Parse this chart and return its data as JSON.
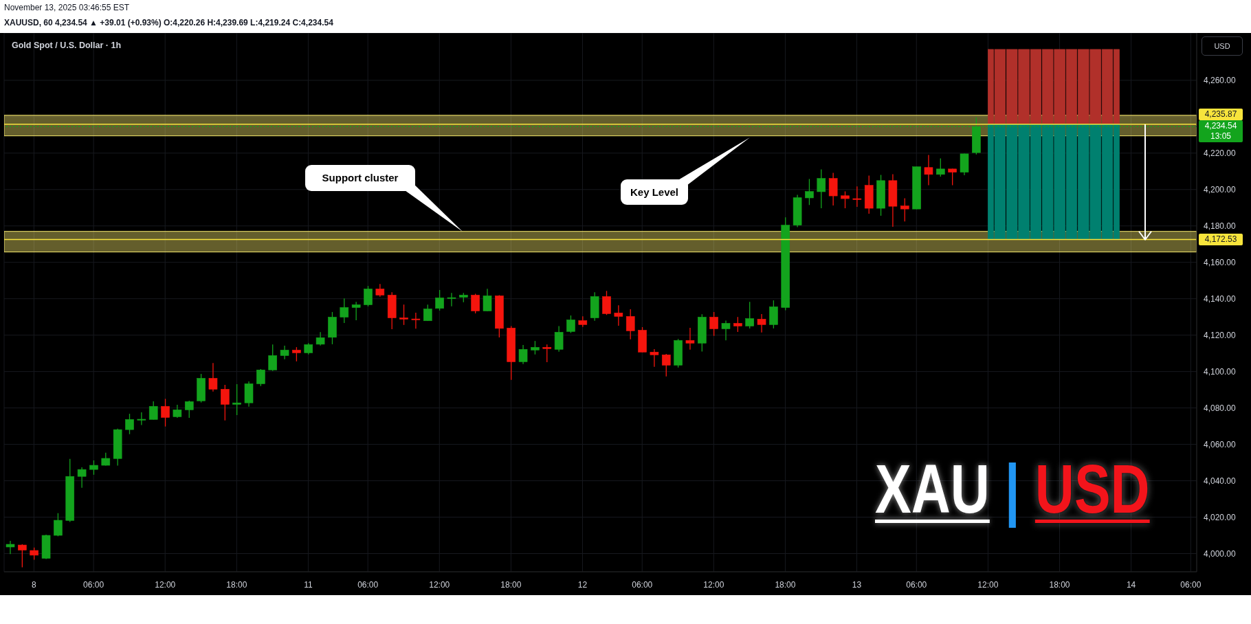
{
  "chart_data": {
    "type": "candlestick",
    "title": "Gold Spot / U.S. Dollar · 1h",
    "subtitle": "XAUUSD, 60 4,234.54 ▲ +39.01 (+0.93%) O:4,220.26 H:4,239.69 L:4,219.24 C:4,234.54",
    "ylabel": "USD",
    "annotations": [
      "November 13, 2025 03:46:55 EST",
      "Support cluster",
      "Key Level",
      "XAU | USD"
    ],
    "categories": [
      null,
      null,
      "8",
      null,
      null,
      null,
      null,
      "06:00",
      null,
      null,
      null,
      null,
      null,
      "12:00",
      null,
      null,
      null,
      null,
      null,
      "18:00",
      null,
      null,
      null,
      null,
      null,
      "11",
      null,
      null,
      null,
      null,
      "06:00",
      null,
      null,
      null,
      null,
      null,
      "12:00",
      null,
      null,
      null,
      null,
      null,
      "18:00",
      null,
      null,
      null,
      null,
      null,
      "12",
      null,
      null,
      null,
      null,
      "06:00",
      null,
      null,
      null,
      null,
      null,
      "12:00",
      null,
      null,
      null,
      null,
      null,
      "18:00",
      null,
      null,
      null,
      null,
      null,
      "13",
      null,
      null,
      null,
      null,
      "06:00",
      null,
      null,
      null,
      null,
      null,
      "12:00",
      null,
      null,
      null,
      null,
      null,
      "18:00",
      null,
      null,
      null,
      null,
      null,
      "14",
      null,
      null,
      null,
      null,
      "06:00"
    ],
    "series": [
      {
        "type": "bar",
        "color": "#b1302a",
        "values": [
          null,
          null,
          null,
          null,
          null,
          null,
          null,
          null,
          null,
          null,
          null,
          null,
          null,
          null,
          null,
          null,
          null,
          null,
          null,
          null,
          null,
          null,
          null,
          null,
          null,
          null,
          null,
          null,
          null,
          null,
          null,
          null,
          null,
          null,
          null,
          null,
          null,
          null,
          null,
          null,
          null,
          null,
          null,
          null,
          null,
          null,
          null,
          null,
          null,
          null,
          null,
          null,
          null,
          null,
          null,
          null,
          null,
          null,
          null,
          null,
          null,
          null,
          null,
          null,
          null,
          null,
          null,
          null,
          null,
          null,
          null,
          null,
          null,
          null,
          null,
          null,
          null,
          null,
          null,
          null,
          null,
          null,
          41.1,
          41.1,
          41.1,
          41.1,
          41.1,
          41.1,
          41.1,
          41.1,
          41.1,
          41.1,
          41.1,
          41.1,
          null,
          null,
          null,
          null,
          null,
          null
        ],
        "base": [
          null,
          null,
          null,
          null,
          null,
          null,
          null,
          null,
          null,
          null,
          null,
          null,
          null,
          null,
          null,
          null,
          null,
          null,
          null,
          null,
          null,
          null,
          null,
          null,
          null,
          null,
          null,
          null,
          null,
          null,
          null,
          null,
          null,
          null,
          null,
          null,
          null,
          null,
          null,
          null,
          null,
          null,
          null,
          null,
          null,
          null,
          null,
          null,
          null,
          null,
          null,
          null,
          null,
          null,
          null,
          null,
          null,
          null,
          null,
          null,
          null,
          null,
          null,
          null,
          null,
          null,
          null,
          null,
          null,
          null,
          null,
          null,
          null,
          null,
          null,
          null,
          null,
          null,
          null,
          null,
          null,
          null,
          4235.87,
          4235.87,
          4235.87,
          4235.87,
          4235.87,
          4235.87,
          4235.87,
          4235.87,
          4235.87,
          4235.87,
          4235.87,
          4235.87,
          null,
          null,
          null,
          null,
          null,
          null
        ]
      },
      {
        "type": "bar",
        "color": "#00806f",
        "values": [
          null,
          null,
          null,
          null,
          null,
          null,
          null,
          null,
          null,
          null,
          null,
          null,
          null,
          null,
          null,
          null,
          null,
          null,
          null,
          null,
          null,
          null,
          null,
          null,
          null,
          null,
          null,
          null,
          null,
          null,
          null,
          null,
          null,
          null,
          null,
          null,
          null,
          null,
          null,
          null,
          null,
          null,
          null,
          null,
          null,
          null,
          null,
          null,
          null,
          null,
          null,
          null,
          null,
          null,
          null,
          null,
          null,
          null,
          null,
          null,
          null,
          null,
          null,
          null,
          null,
          null,
          null,
          null,
          null,
          null,
          null,
          null,
          null,
          null,
          null,
          null,
          null,
          null,
          null,
          null,
          null,
          null,
          63.34,
          63.34,
          63.34,
          63.34,
          63.34,
          63.34,
          63.34,
          63.34,
          63.34,
          63.34,
          63.34,
          63.34,
          null,
          null,
          null,
          null,
          null,
          null
        ],
        "base": [
          null,
          null,
          null,
          null,
          null,
          null,
          null,
          null,
          null,
          null,
          null,
          null,
          null,
          null,
          null,
          null,
          null,
          null,
          null,
          null,
          null,
          null,
          null,
          null,
          null,
          null,
          null,
          null,
          null,
          null,
          null,
          null,
          null,
          null,
          null,
          null,
          null,
          null,
          null,
          null,
          null,
          null,
          null,
          null,
          null,
          null,
          null,
          null,
          null,
          null,
          null,
          null,
          null,
          null,
          null,
          null,
          null,
          null,
          null,
          null,
          null,
          null,
          null,
          null,
          null,
          null,
          null,
          null,
          null,
          null,
          null,
          null,
          null,
          null,
          null,
          null,
          null,
          null,
          null,
          null,
          null,
          null,
          4172.53,
          4172.53,
          4172.53,
          4172.53,
          4172.53,
          4172.53,
          4172.53,
          4172.53,
          4172.53,
          4172.53,
          4172.53,
          4172.53,
          null,
          null,
          null,
          null,
          null,
          null
        ]
      },
      {
        "ohlc": [
          [
            4003.6,
            4007.0,
            3999.7,
            4005.1
          ],
          [
            4004.7,
            4005.1,
            3992.5,
            4001.9
          ],
          [
            4001.7,
            4003.3,
            3996.6,
            3999.1
          ],
          [
            3997.4,
            4010.4,
            3997.0,
            4010.0
          ],
          [
            4010.0,
            4022.2,
            4009.5,
            4018.3
          ],
          [
            4018.2,
            4052.0,
            4017.4,
            4042.4
          ],
          [
            4042.4,
            4047.4,
            4036.2,
            4046.2
          ],
          [
            4046.2,
            4051.2,
            4043.3,
            4048.5
          ],
          [
            4048.5,
            4055.4,
            4048.3,
            4052.3
          ],
          [
            4052.2,
            4068.6,
            4048.3,
            4068.1
          ],
          [
            4068.1,
            4076.8,
            4065.6,
            4073.7
          ],
          [
            4073.7,
            4077.6,
            4070.6,
            4073.8
          ],
          [
            4073.7,
            4083.6,
            4073.6,
            4080.9
          ],
          [
            4080.9,
            4085.0,
            4069.8,
            4074.8
          ],
          [
            4075.2,
            4081.7,
            4074.6,
            4079.0
          ],
          [
            4079.0,
            4084.0,
            4074.6,
            4083.5
          ],
          [
            4083.9,
            4098.7,
            4083.0,
            4096.3
          ],
          [
            4096.3,
            4104.7,
            4089.0,
            4090.3
          ],
          [
            4090.3,
            4092.7,
            4073.2,
            4082.0
          ],
          [
            4082.0,
            4093.1,
            4076.1,
            4082.8
          ],
          [
            4082.8,
            4094.6,
            4080.7,
            4093.3
          ],
          [
            4093.3,
            4101.4,
            4092.0,
            4100.9
          ],
          [
            4100.9,
            4114.9,
            4100.3,
            4108.8
          ],
          [
            4108.8,
            4114.2,
            4106.8,
            4111.8
          ],
          [
            4111.8,
            4113.4,
            4105.6,
            4110.3
          ],
          [
            4110.3,
            4115.6,
            4109.4,
            4114.8
          ],
          [
            4115.0,
            4121.7,
            4114.3,
            4118.6
          ],
          [
            4118.8,
            4132.7,
            4115.0,
            4129.9
          ],
          [
            4129.9,
            4140.2,
            4126.7,
            4135.2
          ],
          [
            4135.2,
            4138.3,
            4128.2,
            4136.7
          ],
          [
            4136.7,
            4147.0,
            4135.8,
            4145.4
          ],
          [
            4145.4,
            4148.1,
            4141.1,
            4142.0
          ],
          [
            4142.0,
            4143.6,
            4123.3,
            4129.5
          ],
          [
            4129.5,
            4136.8,
            4125.6,
            4128.8
          ],
          [
            4128.9,
            4132.3,
            4123.6,
            4128.6
          ],
          [
            4127.9,
            4136.8,
            4127.8,
            4134.4
          ],
          [
            4134.7,
            4144.8,
            4133.5,
            4140.5
          ],
          [
            4140.5,
            4143.2,
            4135.8,
            4140.6
          ],
          [
            4140.8,
            4143.2,
            4138.1,
            4142.0
          ],
          [
            4142.0,
            4142.7,
            4132.0,
            4133.3
          ],
          [
            4133.3,
            4145.5,
            4133.2,
            4141.6
          ],
          [
            4141.6,
            4142.0,
            4118.7,
            4123.7
          ],
          [
            4123.9,
            4125.0,
            4095.4,
            4105.4
          ],
          [
            4105.4,
            4114.6,
            4104.1,
            4112.2
          ],
          [
            4111.8,
            4116.8,
            4109.4,
            4113.3
          ],
          [
            4113.3,
            4114.9,
            4105.2,
            4112.6
          ],
          [
            4112.2,
            4125.0,
            4110.9,
            4121.6
          ],
          [
            4122.0,
            4130.8,
            4121.2,
            4128.4
          ],
          [
            4128.0,
            4130.4,
            4124.5,
            4125.8
          ],
          [
            4129.5,
            4143.6,
            4127.9,
            4141.2
          ],
          [
            4141.2,
            4144.3,
            4131.1,
            4131.8
          ],
          [
            4132.2,
            4136.4,
            4125.2,
            4130.3
          ],
          [
            4130.3,
            4134.2,
            4117.7,
            4122.4
          ],
          [
            4122.7,
            4124.4,
            4110.6,
            4110.7
          ],
          [
            4110.7,
            4112.3,
            4102.6,
            4109.2
          ],
          [
            4109.2,
            4109.7,
            4097.3,
            4103.5
          ],
          [
            4103.5,
            4117.9,
            4102.2,
            4117.1
          ],
          [
            4117.1,
            4124.0,
            4112.0,
            4115.6
          ],
          [
            4115.6,
            4131.5,
            4111.0,
            4129.9
          ],
          [
            4129.9,
            4132.7,
            4119.6,
            4123.5
          ],
          [
            4123.5,
            4128.0,
            4117.1,
            4126.5
          ],
          [
            4126.5,
            4130.0,
            4121.8,
            4125.0
          ],
          [
            4125.0,
            4138.3,
            4123.7,
            4129.1
          ],
          [
            4128.8,
            4131.6,
            4121.5,
            4125.8
          ],
          [
            4125.8,
            4139.1,
            4123.7,
            4135.6
          ],
          [
            4135.2,
            4184.7,
            4133.7,
            4180.4
          ],
          [
            4180.4,
            4197.1,
            4179.3,
            4195.5
          ],
          [
            4195.4,
            4205.8,
            4191.5,
            4198.9
          ],
          [
            4198.8,
            4211.1,
            4189.7,
            4206.1
          ],
          [
            4206.1,
            4209.2,
            4191.2,
            4196.5
          ],
          [
            4196.6,
            4199.0,
            4189.7,
            4195.0
          ],
          [
            4195.0,
            4201.7,
            4190.5,
            4194.8
          ],
          [
            4202.3,
            4207.7,
            4186.7,
            4189.7
          ],
          [
            4189.7,
            4208.0,
            4185.6,
            4204.9
          ],
          [
            4204.9,
            4208.4,
            4179.5,
            4190.8
          ],
          [
            4191.0,
            4195.2,
            4182.5,
            4189.3
          ],
          [
            4189.3,
            4212.6,
            4189.2,
            4212.5
          ],
          [
            4212.1,
            4219.0,
            4202.4,
            4208.3
          ],
          [
            4208.3,
            4217.1,
            4207.1,
            4211.3
          ],
          [
            4211.3,
            4211.4,
            4202.4,
            4209.5
          ],
          [
            4209.5,
            4219.7,
            4207.8,
            4219.6
          ],
          [
            4220.26,
            4239.69,
            4219.24,
            4234.54
          ],
          null,
          null,
          null,
          null,
          null,
          null,
          null,
          null,
          null,
          null,
          null,
          null,
          null,
          null,
          null,
          null,
          null,
          null
        ],
        "colors": [
          "#13a41d",
          "#f5150d",
          "#f5150d",
          "#13a41d",
          "#13a41d",
          "#13a41d",
          "#13a41d",
          "#13a41d",
          "#13a41d",
          "#13a41d",
          "#13a41d",
          "#13a41d",
          "#13a41d",
          "#f5150d",
          "#13a41d",
          "#13a41d",
          "#13a41d",
          "#f5150d",
          "#f5150d",
          "#13a41d",
          "#13a41d",
          "#13a41d",
          "#13a41d",
          "#13a41d",
          "#f5150d",
          "#13a41d",
          "#13a41d",
          "#13a41d",
          "#13a41d",
          "#13a41d",
          "#13a41d",
          "#f5150d",
          "#f5150d",
          "#f5150d",
          "#f5150d",
          "#13a41d",
          "#13a41d",
          "#13a41d",
          "#13a41d",
          "#f5150d",
          "#13a41d",
          "#f5150d",
          "#f5150d",
          "#13a41d",
          "#13a41d",
          "#f5150d",
          "#13a41d",
          "#13a41d",
          "#f5150d",
          "#13a41d",
          "#f5150d",
          "#f5150d",
          "#f5150d",
          "#f5150d",
          "#f5150d",
          "#f5150d",
          "#13a41d",
          "#f5150d",
          "#13a41d",
          "#f5150d",
          "#13a41d",
          "#f5150d",
          "#13a41d",
          "#f5150d",
          "#13a41d",
          "#13a41d",
          "#13a41d",
          "#13a41d",
          "#13a41d",
          "#f5150d",
          "#f5150d",
          "#f5150d",
          "#f5150d",
          "#13a41d",
          "#f5150d",
          "#f5150d",
          "#13a41d",
          "#f5150d",
          "#13a41d",
          "#f5150d",
          "#13a41d",
          "#13a41d",
          null,
          null,
          null,
          null,
          null,
          null,
          null,
          null,
          null,
          null,
          null,
          null,
          null,
          null,
          null,
          null,
          null,
          null
        ]
      }
    ],
    "ylim": [
      3990,
      4286
    ],
    "yticks": [
      {
        "value": 4000,
        "label": "4,000.00"
      },
      {
        "value": 4020,
        "label": "4,020.00"
      },
      {
        "value": 4040,
        "label": "4,040.00"
      },
      {
        "value": 4060,
        "label": "4,060.00"
      },
      {
        "value": 4080,
        "label": "4,080.00"
      },
      {
        "value": 4100,
        "label": "4,100.00"
      },
      {
        "value": 4120,
        "label": "4,120.00"
      },
      {
        "value": 4140,
        "label": "4,140.00"
      },
      {
        "value": 4160,
        "label": "4,160.00"
      },
      {
        "value": 4180,
        "label": "4,180.00"
      },
      {
        "value": 4200,
        "label": "4,200.00"
      },
      {
        "value": 4220,
        "label": "4,220.00"
      },
      {
        "value": 4240,
        "label": null
      },
      {
        "value": 4260,
        "label": "4,260.00"
      }
    ],
    "bands": [
      {
        "axis": "y",
        "from": 4229.5,
        "to": 4240.8,
        "color": "#f9eb6e"
      },
      {
        "axis": "y",
        "from": 4165.7,
        "to": 4177,
        "color": "#f9eb6e"
      }
    ],
    "ref_lines": [
      {
        "axis": "y",
        "value": 4235.87,
        "label": "4,235.87",
        "color": "#f7e43c"
      },
      {
        "axis": "y",
        "value": 4234.54,
        "label": "4,234.54\n13:05",
        "color": "#13a41d",
        "line_style": "dotted"
      },
      {
        "axis": "y",
        "value": 4172.53,
        "label": "4,172.53",
        "color": "#f7e43c"
      }
    ],
    "grid": true
  }
}
